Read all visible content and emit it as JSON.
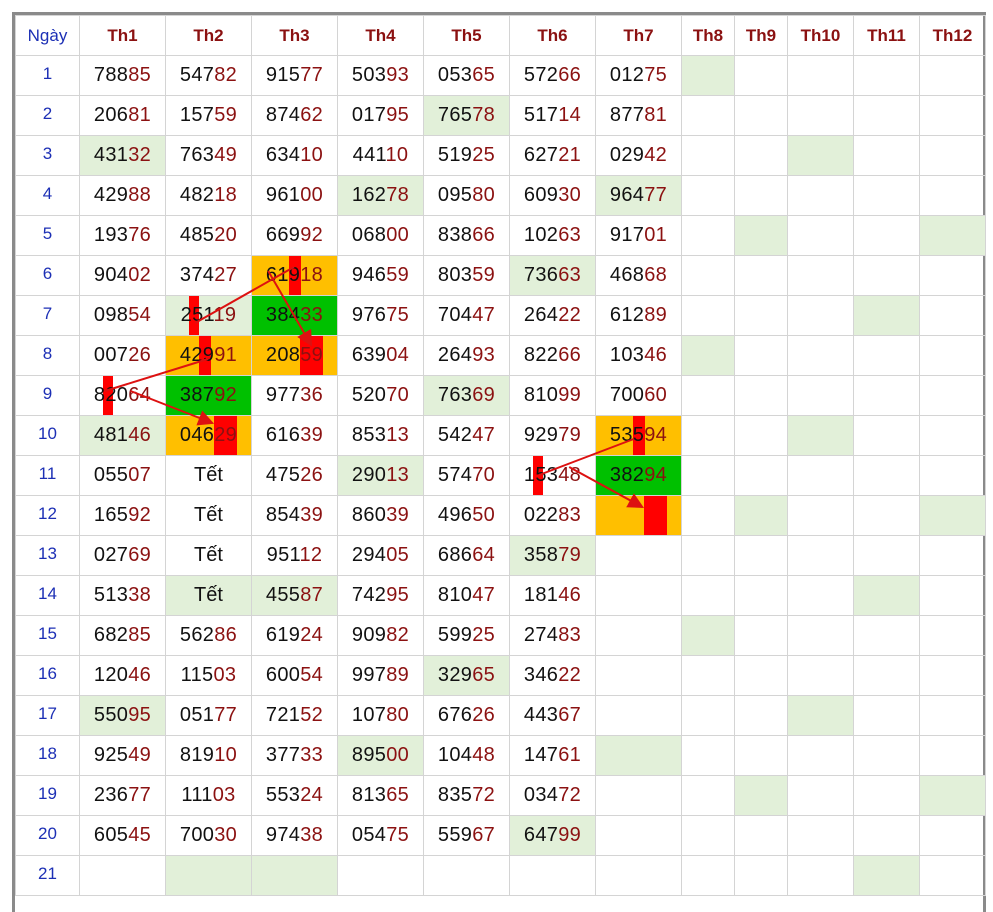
{
  "table": {
    "day_header": "Ngày",
    "months": [
      "Th1",
      "Th2",
      "Th3",
      "Th4",
      "Th5",
      "Th6",
      "Th7",
      "Th8",
      "Th9",
      "Th10",
      "Th11",
      "Th12"
    ],
    "rows": [
      {
        "day": "1",
        "cells": [
          {
            "v": "78885"
          },
          {
            "v": "54782"
          },
          {
            "v": "91577"
          },
          {
            "v": "50393"
          },
          {
            "v": "05365"
          },
          {
            "v": "57266"
          },
          {
            "v": "01275"
          },
          {
            "v": "",
            "bg": "lg"
          },
          {
            "v": ""
          },
          {
            "v": ""
          },
          {
            "v": ""
          },
          {
            "v": ""
          }
        ]
      },
      {
        "day": "2",
        "cells": [
          {
            "v": "20681"
          },
          {
            "v": "15759"
          },
          {
            "v": "87462"
          },
          {
            "v": "01795"
          },
          {
            "v": "76578",
            "bg": "lg"
          },
          {
            "v": "51714"
          },
          {
            "v": "87781"
          },
          {
            "v": ""
          },
          {
            "v": ""
          },
          {
            "v": ""
          },
          {
            "v": ""
          },
          {
            "v": ""
          }
        ]
      },
      {
        "day": "3",
        "cells": [
          {
            "v": "43132",
            "bg": "lg"
          },
          {
            "v": "76349"
          },
          {
            "v": "63410"
          },
          {
            "v": "44110"
          },
          {
            "v": "51925"
          },
          {
            "v": "62721"
          },
          {
            "v": "02942"
          },
          {
            "v": ""
          },
          {
            "v": ""
          },
          {
            "v": "",
            "bg": "lg"
          },
          {
            "v": ""
          },
          {
            "v": ""
          }
        ]
      },
      {
        "day": "4",
        "cells": [
          {
            "v": "42988"
          },
          {
            "v": "48218"
          },
          {
            "v": "96100"
          },
          {
            "v": "16278",
            "bg": "lg"
          },
          {
            "v": "09580"
          },
          {
            "v": "60930"
          },
          {
            "v": "96477",
            "bg": "lg"
          },
          {
            "v": ""
          },
          {
            "v": ""
          },
          {
            "v": ""
          },
          {
            "v": ""
          },
          {
            "v": ""
          }
        ]
      },
      {
        "day": "5",
        "cells": [
          {
            "v": "19376"
          },
          {
            "v": "48520"
          },
          {
            "v": "66992"
          },
          {
            "v": "06800"
          },
          {
            "v": "83866"
          },
          {
            "v": "10263"
          },
          {
            "v": "91701"
          },
          {
            "v": ""
          },
          {
            "v": "",
            "bg": "lg"
          },
          {
            "v": ""
          },
          {
            "v": ""
          },
          {
            "v": "",
            "bg": "lg"
          }
        ]
      },
      {
        "day": "6",
        "cells": [
          {
            "v": "90402"
          },
          {
            "v": "37427"
          },
          {
            "v": "61918",
            "bg": "og",
            "mark": "m4"
          },
          {
            "v": "94659"
          },
          {
            "v": "80359"
          },
          {
            "v": "73663",
            "bg": "lg"
          },
          {
            "v": "46868"
          },
          {
            "v": ""
          },
          {
            "v": ""
          },
          {
            "v": ""
          },
          {
            "v": ""
          },
          {
            "v": ""
          }
        ]
      },
      {
        "day": "7",
        "cells": [
          {
            "v": "09854"
          },
          {
            "v": "25119",
            "bg": "lg",
            "mark": "m2"
          },
          {
            "v": "38433",
            "bg": "gr"
          },
          {
            "v": "97675"
          },
          {
            "v": "70447"
          },
          {
            "v": "26422"
          },
          {
            "v": "61289"
          },
          {
            "v": ""
          },
          {
            "v": ""
          },
          {
            "v": ""
          },
          {
            "v": "",
            "bg": "lg"
          },
          {
            "v": ""
          }
        ]
      },
      {
        "day": "8",
        "cells": [
          {
            "v": "00726"
          },
          {
            "v": "42991",
            "bg": "og",
            "mark": "m3"
          },
          {
            "v": "20859",
            "bg": "og",
            "mark": "m45"
          },
          {
            "v": "63904"
          },
          {
            "v": "26493"
          },
          {
            "v": "82266"
          },
          {
            "v": "10346"
          },
          {
            "v": "",
            "bg": "lg"
          },
          {
            "v": ""
          },
          {
            "v": ""
          },
          {
            "v": ""
          },
          {
            "v": ""
          }
        ]
      },
      {
        "day": "9",
        "cells": [
          {
            "v": "82064",
            "mark": "m2"
          },
          {
            "v": "38792",
            "bg": "gr"
          },
          {
            "v": "97736"
          },
          {
            "v": "52070"
          },
          {
            "v": "76369",
            "bg": "lg"
          },
          {
            "v": "81099"
          },
          {
            "v": "70060"
          },
          {
            "v": ""
          },
          {
            "v": ""
          },
          {
            "v": ""
          },
          {
            "v": ""
          },
          {
            "v": ""
          }
        ]
      },
      {
        "day": "10",
        "cells": [
          {
            "v": "48146",
            "bg": "lg"
          },
          {
            "v": "04629",
            "bg": "og",
            "mark": "m45"
          },
          {
            "v": "61639"
          },
          {
            "v": "85313"
          },
          {
            "v": "54247"
          },
          {
            "v": "92979"
          },
          {
            "v": "53594",
            "bg": "og",
            "mark": "m4"
          },
          {
            "v": ""
          },
          {
            "v": ""
          },
          {
            "v": "",
            "bg": "lg"
          },
          {
            "v": ""
          },
          {
            "v": ""
          }
        ]
      },
      {
        "day": "11",
        "cells": [
          {
            "v": "05507"
          },
          {
            "v": "Tết",
            "tet": true
          },
          {
            "v": "47526"
          },
          {
            "v": "29013",
            "bg": "lg"
          },
          {
            "v": "57470"
          },
          {
            "v": "15348",
            "mark": "m2"
          },
          {
            "v": "38294",
            "bg": "gr"
          },
          {
            "v": ""
          },
          {
            "v": ""
          },
          {
            "v": ""
          },
          {
            "v": ""
          },
          {
            "v": ""
          }
        ]
      },
      {
        "day": "12",
        "cells": [
          {
            "v": "16592"
          },
          {
            "v": "Tết",
            "tet": true
          },
          {
            "v": "85439"
          },
          {
            "v": "86039"
          },
          {
            "v": "49650"
          },
          {
            "v": "02283"
          },
          {
            "v": "",
            "bg": "og",
            "mark": "m45"
          },
          {
            "v": ""
          },
          {
            "v": "",
            "bg": "lg"
          },
          {
            "v": ""
          },
          {
            "v": ""
          },
          {
            "v": "",
            "bg": "lg"
          }
        ]
      },
      {
        "day": "13",
        "cells": [
          {
            "v": "02769"
          },
          {
            "v": "Tết",
            "tet": true
          },
          {
            "v": "95112"
          },
          {
            "v": "29405"
          },
          {
            "v": "68664"
          },
          {
            "v": "35879",
            "bg": "lg"
          },
          {
            "v": ""
          },
          {
            "v": ""
          },
          {
            "v": ""
          },
          {
            "v": ""
          },
          {
            "v": ""
          },
          {
            "v": ""
          }
        ]
      },
      {
        "day": "14",
        "cells": [
          {
            "v": "51338"
          },
          {
            "v": "Tết",
            "tet": true,
            "bg": "lg"
          },
          {
            "v": "45587",
            "bg": "lg"
          },
          {
            "v": "74295"
          },
          {
            "v": "81047"
          },
          {
            "v": "18146"
          },
          {
            "v": ""
          },
          {
            "v": ""
          },
          {
            "v": ""
          },
          {
            "v": ""
          },
          {
            "v": "",
            "bg": "lg"
          },
          {
            "v": ""
          }
        ]
      },
      {
        "day": "15",
        "cells": [
          {
            "v": "68285"
          },
          {
            "v": "56286"
          },
          {
            "v": "61924"
          },
          {
            "v": "90982"
          },
          {
            "v": "59925"
          },
          {
            "v": "27483"
          },
          {
            "v": ""
          },
          {
            "v": "",
            "bg": "lg"
          },
          {
            "v": ""
          },
          {
            "v": ""
          },
          {
            "v": ""
          },
          {
            "v": ""
          }
        ]
      },
      {
        "day": "16",
        "cells": [
          {
            "v": "12046"
          },
          {
            "v": "11503"
          },
          {
            "v": "60054"
          },
          {
            "v": "99789"
          },
          {
            "v": "32965",
            "bg": "lg"
          },
          {
            "v": "34622"
          },
          {
            "v": ""
          },
          {
            "v": ""
          },
          {
            "v": ""
          },
          {
            "v": ""
          },
          {
            "v": ""
          },
          {
            "v": ""
          }
        ]
      },
      {
        "day": "17",
        "cells": [
          {
            "v": "55095",
            "bg": "lg"
          },
          {
            "v": "05177"
          },
          {
            "v": "72152"
          },
          {
            "v": "10780"
          },
          {
            "v": "67626"
          },
          {
            "v": "44367"
          },
          {
            "v": ""
          },
          {
            "v": ""
          },
          {
            "v": ""
          },
          {
            "v": "",
            "bg": "lg"
          },
          {
            "v": ""
          },
          {
            "v": ""
          }
        ]
      },
      {
        "day": "18",
        "cells": [
          {
            "v": "92549"
          },
          {
            "v": "81910"
          },
          {
            "v": "37733"
          },
          {
            "v": "89500",
            "bg": "lg"
          },
          {
            "v": "10448"
          },
          {
            "v": "14761"
          },
          {
            "v": "",
            "bg": "lg"
          },
          {
            "v": ""
          },
          {
            "v": ""
          },
          {
            "v": ""
          },
          {
            "v": ""
          },
          {
            "v": ""
          }
        ]
      },
      {
        "day": "19",
        "cells": [
          {
            "v": "23677"
          },
          {
            "v": "11103"
          },
          {
            "v": "55324"
          },
          {
            "v": "81365"
          },
          {
            "v": "83572"
          },
          {
            "v": "03472"
          },
          {
            "v": ""
          },
          {
            "v": ""
          },
          {
            "v": "",
            "bg": "lg"
          },
          {
            "v": ""
          },
          {
            "v": ""
          },
          {
            "v": "",
            "bg": "lg"
          }
        ]
      },
      {
        "day": "20",
        "cells": [
          {
            "v": "60545"
          },
          {
            "v": "70030"
          },
          {
            "v": "97438"
          },
          {
            "v": "05475"
          },
          {
            "v": "55967"
          },
          {
            "v": "64799",
            "bg": "lg"
          },
          {
            "v": ""
          },
          {
            "v": ""
          },
          {
            "v": ""
          },
          {
            "v": ""
          },
          {
            "v": ""
          },
          {
            "v": ""
          }
        ]
      },
      {
        "day": "21",
        "cells": [
          {
            "v": ""
          },
          {
            "v": "",
            "bg": "lg"
          },
          {
            "v": "",
            "bg": "lg"
          },
          {
            "v": ""
          },
          {
            "v": ""
          },
          {
            "v": ""
          },
          {
            "v": ""
          },
          {
            "v": ""
          },
          {
            "v": ""
          },
          {
            "v": ""
          },
          {
            "v": "",
            "bg": "lg"
          },
          {
            "v": ""
          }
        ]
      }
    ]
  },
  "colors": {
    "highlight_light_green": "#e2f0d9",
    "highlight_orange": "#ffbf00",
    "highlight_green": "#00c000",
    "marker_red": "#ff0000",
    "day_blue": "#1c2fb5",
    "month_red": "#8b1111"
  }
}
